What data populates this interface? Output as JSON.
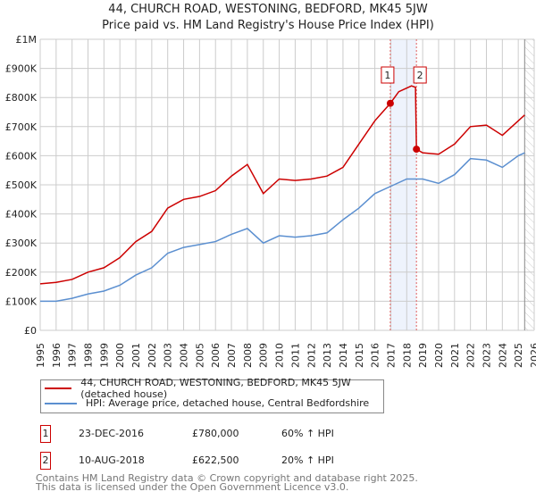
{
  "chart_data": {
    "type": "line",
    "title": "44, CHURCH ROAD, WESTONING, BEDFORD, MK45 5JW",
    "subtitle": "Price paid vs. HM Land Registry's House Price Index (HPI)",
    "xlim": [
      1995,
      2026
    ],
    "ylim": [
      0,
      1000000
    ],
    "x_ticks": [
      "1995",
      "1996",
      "1997",
      "1998",
      "1999",
      "2000",
      "2001",
      "2002",
      "2003",
      "2004",
      "2005",
      "2006",
      "2007",
      "2008",
      "2009",
      "2010",
      "2011",
      "2012",
      "2013",
      "2014",
      "2015",
      "2016",
      "2017",
      "2018",
      "2019",
      "2020",
      "2021",
      "2022",
      "2023",
      "2024",
      "2025",
      "2026"
    ],
    "y_ticks": [
      {
        "v": 0,
        "l": "£0"
      },
      {
        "v": 100000,
        "l": "£100K"
      },
      {
        "v": 200000,
        "l": "£200K"
      },
      {
        "v": 300000,
        "l": "£300K"
      },
      {
        "v": 400000,
        "l": "£400K"
      },
      {
        "v": 500000,
        "l": "£500K"
      },
      {
        "v": 600000,
        "l": "£600K"
      },
      {
        "v": 700000,
        "l": "£700K"
      },
      {
        "v": 800000,
        "l": "£800K"
      },
      {
        "v": 900000,
        "l": "£900K"
      },
      {
        "v": 1000000,
        "l": "£1M"
      }
    ],
    "grid": true,
    "series": [
      {
        "name": "44, CHURCH ROAD, WESTONING, BEDFORD, MK45 5JW (detached house)",
        "color": "#cc0000",
        "x": [
          1995,
          1996,
          1997,
          1998,
          1999,
          2000,
          2001,
          2002,
          2003,
          2004,
          2005,
          2006,
          2007,
          2008,
          2009,
          2010,
          2011,
          2012,
          2013,
          2014,
          2015,
          2016,
          2016.97,
          2017.5,
          2018.3,
          2018.55,
          2018.61,
          2019,
          2020,
          2021,
          2022,
          2023,
          2024,
          2025,
          2025.4
        ],
        "y": [
          160000,
          165000,
          175000,
          200000,
          215000,
          250000,
          305000,
          340000,
          420000,
          450000,
          460000,
          480000,
          530000,
          570000,
          470000,
          520000,
          515000,
          520000,
          530000,
          560000,
          640000,
          720000,
          780000,
          820000,
          840000,
          835000,
          622500,
          610000,
          605000,
          640000,
          700000,
          705000,
          670000,
          720000,
          740000
        ]
      },
      {
        "name": "HPI: Average price, detached house, Central Bedfordshire",
        "color": "#5b8fd0",
        "x": [
          1995,
          1996,
          1997,
          1998,
          1999,
          2000,
          2001,
          2002,
          2003,
          2004,
          2005,
          2006,
          2007,
          2008,
          2009,
          2010,
          2011,
          2012,
          2013,
          2014,
          2015,
          2016,
          2017,
          2018,
          2019,
          2020,
          2021,
          2022,
          2023,
          2024,
          2025,
          2025.4
        ],
        "y": [
          100000,
          100000,
          110000,
          125000,
          135000,
          155000,
          190000,
          215000,
          265000,
          285000,
          295000,
          305000,
          330000,
          350000,
          300000,
          325000,
          320000,
          325000,
          335000,
          380000,
          420000,
          470000,
          495000,
          520000,
          520000,
          505000,
          535000,
          590000,
          585000,
          560000,
          600000,
          610000
        ]
      }
    ],
    "annotations": [
      {
        "label": "1",
        "x": 2016.97,
        "y": 780000
      },
      {
        "label": "2",
        "x": 2018.61,
        "y": 622500
      }
    ],
    "shaded_range": [
      2016.97,
      2018.61
    ],
    "forecast_hatch_from": 2025.4
  },
  "legend": [
    "44, CHURCH ROAD, WESTONING, BEDFORD, MK45 5JW (detached house)",
    "HPI: Average price, detached house, Central Bedfordshire"
  ],
  "transactions": [
    {
      "n": "1",
      "date": "23-DEC-2016",
      "price": "£780,000",
      "hpi": "60% ↑ HPI"
    },
    {
      "n": "2",
      "date": "10-AUG-2018",
      "price": "£622,500",
      "hpi": "20% ↑ HPI"
    }
  ],
  "footer": [
    "Contains HM Land Registry data © Crown copyright and database right 2025.",
    "This data is licensed under the Open Government Licence v3.0."
  ]
}
